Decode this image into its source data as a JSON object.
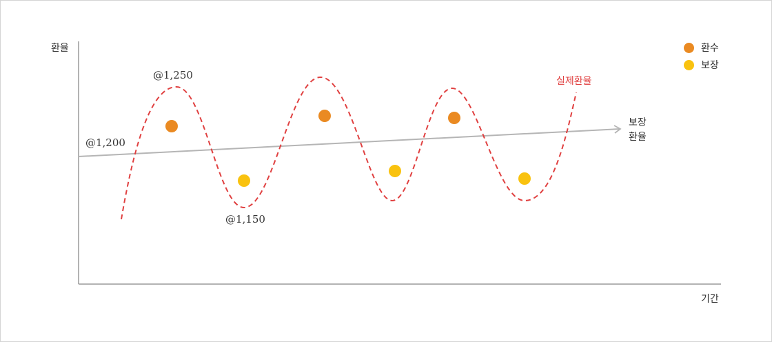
{
  "chart_data": {
    "type": "line",
    "ylabel": "환율",
    "xlabel": "기간",
    "legend": [
      {
        "name": "환수",
        "color": "#ea8a22"
      },
      {
        "name": "보장",
        "color": "#f9c20f"
      }
    ],
    "legend_position": "top-right",
    "actual_rate": {
      "name": "실제환율",
      "color": "#e04040",
      "style": "dashed",
      "annotations": [
        {
          "label": "@1,250",
          "value": 1250
        },
        {
          "label": "@1,150",
          "value": 1150
        }
      ]
    },
    "guaranteed_rate": {
      "name": "보장\n환율",
      "line1": "보장",
      "line2": "환율",
      "color": "#b5b5b5",
      "start_label": "@1,200",
      "start_value": 1200
    },
    "points": [
      {
        "series": "환수",
        "period": 1
      },
      {
        "series": "보장",
        "period": 2
      },
      {
        "series": "환수",
        "period": 3
      },
      {
        "series": "보장",
        "period": 4
      },
      {
        "series": "환수",
        "period": 5
      },
      {
        "series": "보장",
        "period": 6
      }
    ]
  }
}
